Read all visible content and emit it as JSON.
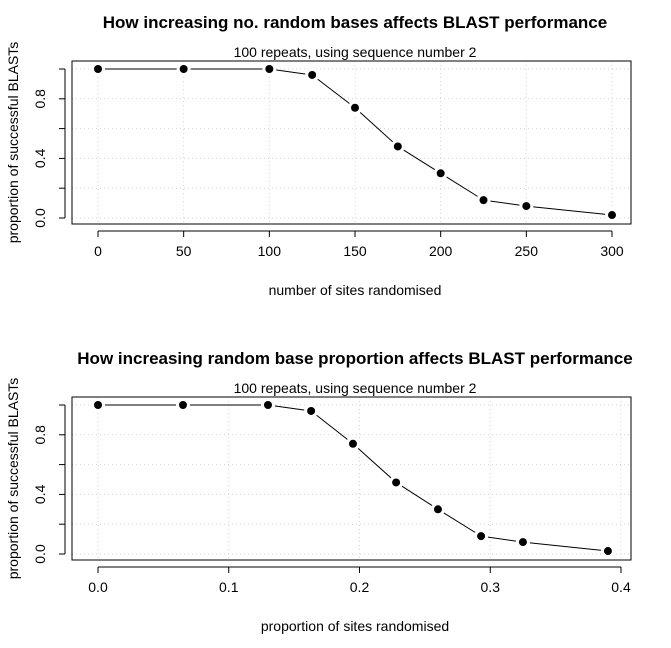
{
  "chart_data": [
    {
      "type": "line",
      "title": "How increasing no. random bases affects BLAST performance",
      "subtitle": "100 repeats, using sequence number 2",
      "xlabel": "number of sites randomised",
      "ylabel": "proportion of successful BLASTs",
      "x_ticks": [
        "0",
        "50",
        "100",
        "150",
        "200",
        "250",
        "300"
      ],
      "y_ticks": [
        "0.0",
        "0.4",
        "0.8"
      ],
      "xlim": [
        0,
        300
      ],
      "ylim": [
        0,
        1
      ],
      "grid": true,
      "series": [
        {
          "x": [
            0,
            50,
            100,
            125,
            150,
            175,
            200,
            225,
            250,
            300
          ],
          "y": [
            1.0,
            1.0,
            1.0,
            0.96,
            0.74,
            0.48,
            0.3,
            0.12,
            0.08,
            0.02
          ]
        }
      ]
    },
    {
      "type": "line",
      "title": "How increasing random base proportion affects BLAST performance",
      "subtitle": "100 repeats, using sequence number 2",
      "xlabel": "proportion of sites randomised",
      "ylabel": "proportion of successful BLASTs",
      "x_ticks": [
        "0.0",
        "0.1",
        "0.2",
        "0.3",
        "0.4"
      ],
      "y_ticks": [
        "0.0",
        "0.4",
        "0.8"
      ],
      "xlim": [
        0,
        0.4
      ],
      "ylim": [
        0,
        1
      ],
      "grid": true,
      "series": [
        {
          "x": [
            0,
            0.065,
            0.13,
            0.163,
            0.195,
            0.228,
            0.26,
            0.293,
            0.325,
            0.39
          ],
          "y": [
            1.0,
            1.0,
            1.0,
            0.96,
            0.74,
            0.48,
            0.3,
            0.12,
            0.08,
            0.02
          ]
        }
      ]
    }
  ]
}
